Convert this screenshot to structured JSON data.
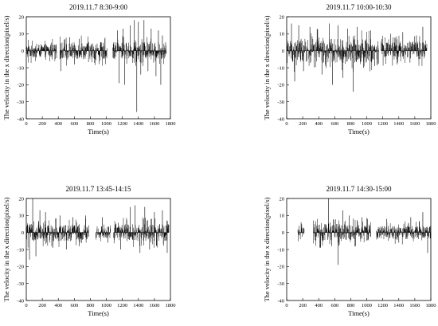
{
  "chart_data": [
    {
      "type": "bar",
      "title": "2019.11.7 8:30-9:00",
      "xlabel": "Time(s)",
      "ylabel": "The velocity in the x direction(pixel/s)",
      "xlim": [
        0,
        1800
      ],
      "ylim": [
        -40,
        20
      ],
      "xticks": [
        "0",
        "200",
        "400",
        "600",
        "800",
        "1000",
        "1200",
        "1400",
        "1600",
        "1800"
      ],
      "yticks": [
        "-40",
        "-30",
        "-20",
        "-10",
        "0",
        "10",
        "20"
      ],
      "segments": [
        {
          "start": 0,
          "end": 380,
          "level": 4,
          "spikes": []
        },
        {
          "start": 420,
          "end": 1010,
          "level": 5,
          "spikes": [
            [
              430,
              -12
            ],
            [
              540,
              8
            ],
            [
              600,
              -8
            ],
            [
              660,
              7
            ]
          ]
        },
        {
          "start": 1080,
          "end": 1750,
          "level": 5,
          "spikes": [
            [
              1140,
              12
            ],
            [
              1160,
              -19
            ],
            [
              1210,
              13
            ],
            [
              1230,
              -20
            ],
            [
              1300,
              15
            ],
            [
              1350,
              18
            ],
            [
              1380,
              -36
            ],
            [
              1400,
              17
            ],
            [
              1430,
              -14
            ],
            [
              1470,
              18
            ],
            [
              1520,
              -12
            ],
            [
              1560,
              13
            ],
            [
              1620,
              -15
            ],
            [
              1650,
              12
            ],
            [
              1680,
              -20
            ],
            [
              1700,
              9
            ]
          ]
        }
      ],
      "grid": false,
      "legend": "none"
    },
    {
      "type": "bar",
      "title": "2019.11.7 10:00-10:30",
      "xlabel": "Time(s)",
      "ylabel": "The velocity in the x direction(pixel/s)",
      "xlim": [
        0,
        1800
      ],
      "ylim": [
        -40,
        20
      ],
      "xticks": [
        "0",
        "200",
        "400",
        "600",
        "800",
        "1000",
        "1200",
        "1400",
        "1600",
        "1800"
      ],
      "yticks": [
        "-40",
        "-30",
        "-20",
        "-10",
        "0",
        "10",
        "20"
      ],
      "segments": [
        {
          "start": 0,
          "end": 1150,
          "level": 7,
          "spikes": [
            [
              60,
              16
            ],
            [
              100,
              -18
            ],
            [
              150,
              15
            ],
            [
              210,
              -12
            ],
            [
              290,
              14
            ],
            [
              380,
              13
            ],
            [
              440,
              -14
            ],
            [
              530,
              16
            ],
            [
              570,
              -20
            ],
            [
              640,
              15
            ],
            [
              700,
              -16
            ],
            [
              760,
              13
            ],
            [
              830,
              -24
            ],
            [
              880,
              14
            ],
            [
              960,
              -10
            ],
            [
              1050,
              12
            ],
            [
              1100,
              -9
            ]
          ]
        },
        {
          "start": 1180,
          "end": 1750,
          "level": 5,
          "spikes": [
            [
              1300,
              10
            ],
            [
              1380,
              -8
            ],
            [
              1450,
              11
            ],
            [
              1540,
              -7
            ],
            [
              1620,
              9
            ],
            [
              1700,
              14
            ]
          ]
        }
      ],
      "grid": false,
      "legend": "none"
    },
    {
      "type": "bar",
      "title": "2019.11.7 13:45-14:15",
      "xlabel": "Time(s)",
      "ylabel": "The velocity in the x direction(pixel/s)",
      "xlim": [
        0,
        1800
      ],
      "ylim": [
        -40,
        20
      ],
      "xticks": [
        "0",
        "200",
        "400",
        "600",
        "800",
        "1000",
        "1200",
        "1400",
        "1600",
        "1800"
      ],
      "yticks": [
        "-40",
        "-30",
        "-20",
        "-10",
        "0",
        "10",
        "20"
      ],
      "segments": [
        {
          "start": 0,
          "end": 780,
          "level": 5,
          "spikes": [
            [
              40,
              -16
            ],
            [
              80,
              20
            ],
            [
              120,
              -14
            ],
            [
              170,
              13
            ],
            [
              240,
              12
            ],
            [
              330,
              -9
            ],
            [
              420,
              10
            ],
            [
              500,
              -10
            ],
            [
              580,
              9
            ],
            [
              660,
              -8
            ],
            [
              740,
              10
            ]
          ]
        },
        {
          "start": 870,
          "end": 1050,
          "level": 4,
          "spikes": [
            [
              950,
              9
            ],
            [
              1020,
              -6
            ]
          ]
        },
        {
          "start": 1090,
          "end": 1780,
          "level": 5,
          "spikes": [
            [
              1180,
              -10
            ],
            [
              1300,
              15
            ],
            [
              1360,
              16
            ],
            [
              1420,
              -12
            ],
            [
              1480,
              15
            ],
            [
              1540,
              -10
            ],
            [
              1600,
              12
            ],
            [
              1700,
              13
            ],
            [
              1760,
              -12
            ]
          ]
        }
      ],
      "grid": false,
      "legend": "none"
    },
    {
      "type": "bar",
      "title": "2019.11.7 14:30-15:00",
      "xlabel": "Time(s)",
      "ylabel": "The velocity in the x direction(pixel/s)",
      "xlim": [
        0,
        1800
      ],
      "ylim": [
        -40,
        20
      ],
      "xticks": [
        "0",
        "200",
        "400",
        "600",
        "800",
        "1000",
        "1200",
        "1400",
        "1600",
        "1800"
      ],
      "yticks": [
        "-40",
        "-30",
        "-20",
        "-10",
        "0",
        "10",
        "20"
      ],
      "segments": [
        {
          "start": 140,
          "end": 220,
          "level": 3,
          "spikes": [
            [
              180,
              6
            ]
          ]
        },
        {
          "start": 330,
          "end": 1050,
          "level": 5,
          "spikes": [
            [
              420,
              -9
            ],
            [
              520,
              20
            ],
            [
              560,
              -8
            ],
            [
              640,
              -19
            ],
            [
              700,
              13
            ],
            [
              780,
              10
            ],
            [
              860,
              -8
            ],
            [
              940,
              9
            ],
            [
              1010,
              8
            ]
          ]
        },
        {
          "start": 1120,
          "end": 1800,
          "level": 4,
          "spikes": [
            [
              1250,
              8
            ],
            [
              1400,
              -6
            ],
            [
              1550,
              9
            ],
            [
              1700,
              12
            ],
            [
              1760,
              -12
            ]
          ]
        }
      ],
      "grid": false,
      "legend": "none"
    }
  ]
}
